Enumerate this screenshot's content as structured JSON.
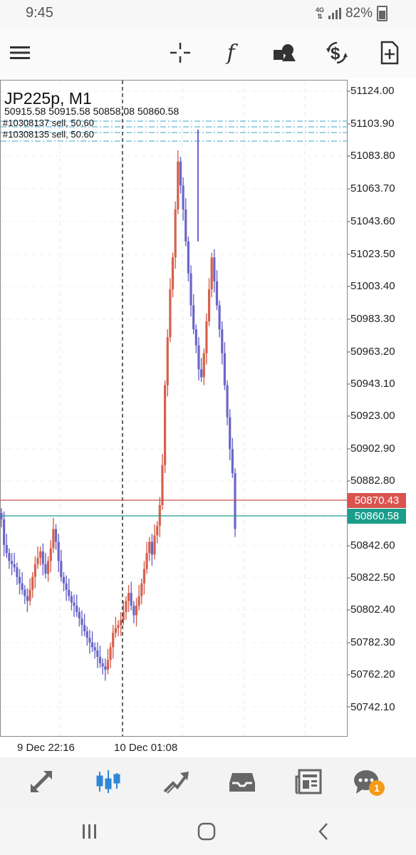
{
  "status": {
    "time": "9:45",
    "network": "4G",
    "battery": "82%"
  },
  "toolbar": {
    "icons": [
      "menu-icon",
      "crosshair-icon",
      "indicators-icon",
      "objects-icon",
      "trade-icon",
      "new-order-icon"
    ]
  },
  "chart": {
    "symbol": "JP225p, M1",
    "ohlc": "50915.58 50915.58 50858.08 50860.58",
    "orders": [
      "#10308137 sell, 50.60",
      "#10308135 sell, 50.60"
    ],
    "price_ticks": [
      "51124.00",
      "51103.90",
      "51083.80",
      "51063.70",
      "51043.60",
      "51023.50",
      "51003.40",
      "50983.30",
      "50963.20",
      "50943.10",
      "50923.00",
      "50902.90",
      "50882.80",
      "50842.60",
      "50822.50",
      "50802.40",
      "50782.30",
      "50762.20",
      "50742.10"
    ],
    "ask_price": "50870.43",
    "bid_price": "50860.58",
    "date_labels": [
      "9 Dec 22:16",
      "10 Dec 01:08"
    ],
    "colors": {
      "up": "#d6604d",
      "down": "#6b66c8",
      "ask_line": "#c9504a",
      "bid_line": "#1f9e8c",
      "order_line": "#3aa6c8"
    }
  },
  "chart_data": {
    "type": "candlestick",
    "symbol": "JP225p",
    "timeframe": "M1",
    "ylim": [
      50730,
      51135
    ],
    "x_labels": [
      "9 Dec 22:16",
      "10 Dec 01:08"
    ],
    "close_series": [
      50866,
      50850,
      50845,
      50840,
      50838,
      50836,
      50830,
      50826,
      50822,
      50818,
      50815,
      50822,
      50830,
      50838,
      50842,
      50846,
      50838,
      50832,
      50840,
      50848,
      50860,
      50852,
      50840,
      50830,
      50826,
      50822,
      50818,
      50814,
      50812,
      50808,
      50804,
      50800,
      50796,
      50792,
      50789,
      50786,
      50784,
      50780,
      50776,
      50774,
      50772,
      50778,
      50786,
      50795,
      50798,
      50800,
      50803,
      50808,
      50815,
      50820,
      50812,
      50806,
      50812,
      50818,
      50826,
      50835,
      50845,
      50852,
      50844,
      50856,
      50862,
      50875,
      50900,
      50950,
      50980,
      51010,
      51030,
      51060,
      51090,
      51075,
      51060,
      51040,
      51020,
      51000,
      50985,
      50975,
      50960,
      50955,
      50970,
      50990,
      51010,
      51030,
      51015,
      51000,
      50985,
      50970,
      50950,
      50930,
      50910,
      50895,
      50860
    ],
    "last_close": 50860.58,
    "ask": 50870.43,
    "bid": 50860.58
  },
  "bottom_nav": {
    "items": [
      "quotes-icon",
      "chart-icon",
      "trade-icon",
      "history-icon",
      "news-icon",
      "messages-icon"
    ],
    "messages_badge": "1"
  }
}
